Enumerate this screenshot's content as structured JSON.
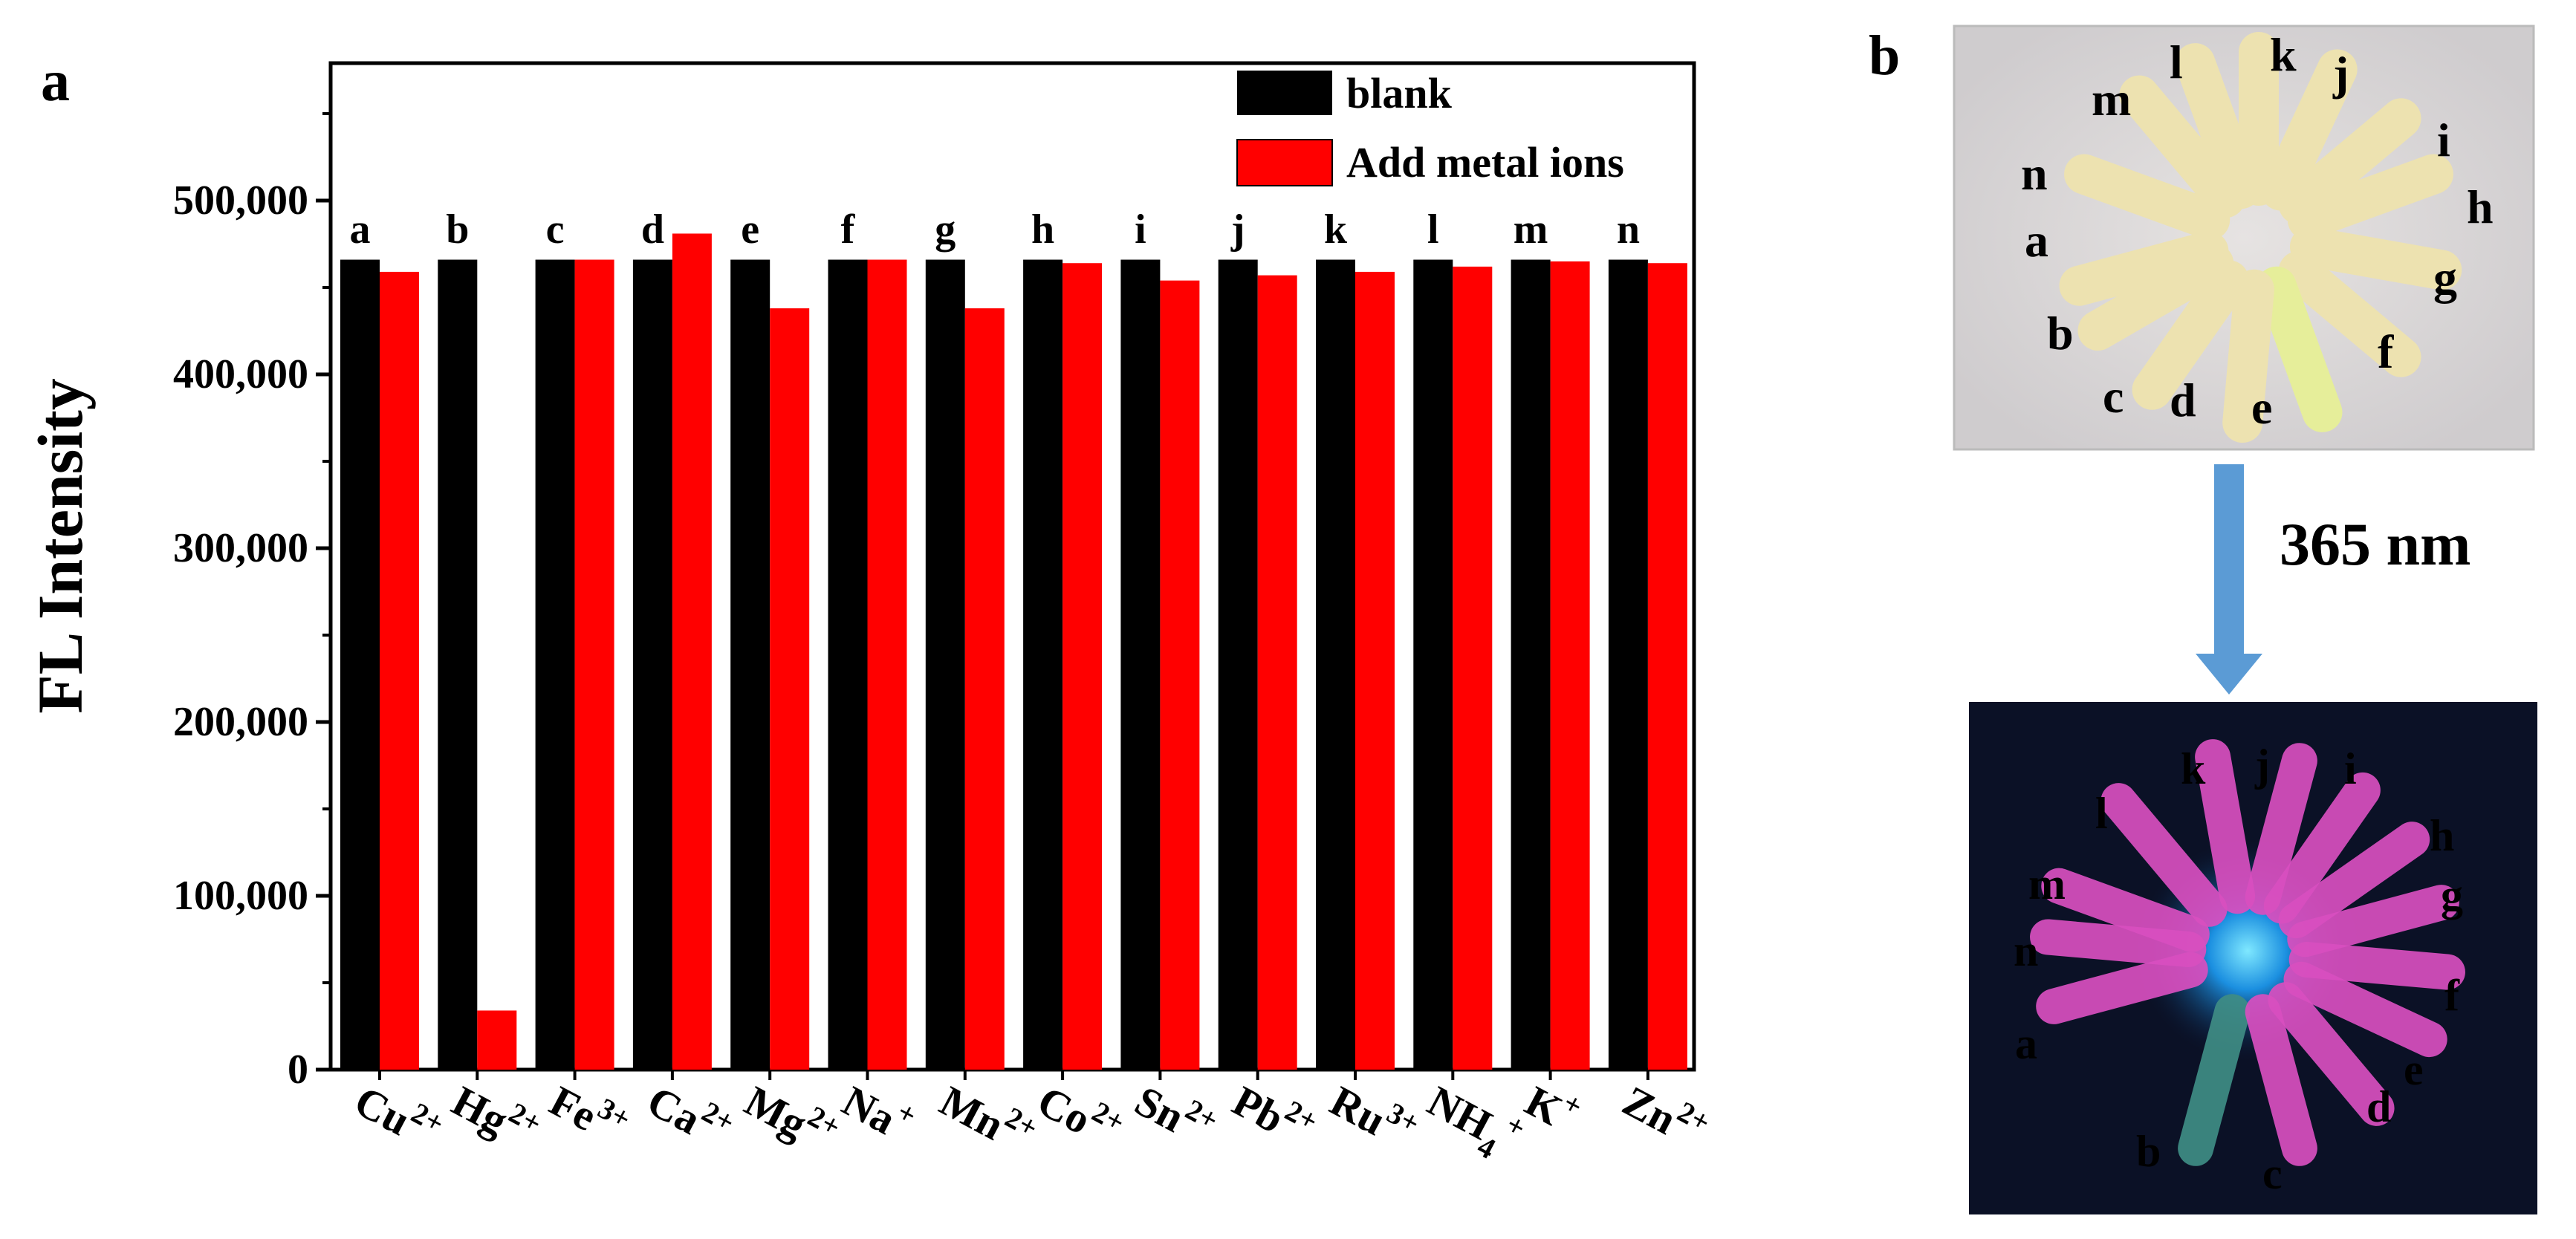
{
  "panel_a_label": "a",
  "panel_b_label": "b",
  "arrow_label": "365 nm",
  "chart_data": {
    "type": "bar",
    "title": "",
    "xlabel": "",
    "ylabel": "FL Intensity",
    "ylim": [
      0,
      560000
    ],
    "yticks": [
      0,
      100000,
      200000,
      300000,
      400000,
      500000
    ],
    "ytick_labels": [
      "0",
      "100,000",
      "200,000",
      "300,000",
      "400,000",
      "500,000"
    ],
    "categories": [
      {
        "base": "Cu",
        "sup": "2+"
      },
      {
        "base": "Hg",
        "sup": "2+"
      },
      {
        "base": "Fe",
        "sup": "3+"
      },
      {
        "base": "Ca",
        "sup": "2+"
      },
      {
        "base": "Mg",
        "sup": "2+"
      },
      {
        "base": "Na",
        "sup": "+"
      },
      {
        "base": "Mn",
        "sup": "2+"
      },
      {
        "base": "Co",
        "sup": "2+"
      },
      {
        "base": "Sn",
        "sup": "2+"
      },
      {
        "base": "Pb",
        "sup": "2+"
      },
      {
        "base": "Ru",
        "sup": "3+"
      },
      {
        "base": "NH",
        "sub": "4",
        "sup": "+"
      },
      {
        "base": "K",
        "sup": "+"
      },
      {
        "base": "Zn",
        "sup": "2+"
      }
    ],
    "bar_letters": [
      "a",
      "b",
      "c",
      "d",
      "e",
      "f",
      "g",
      "h",
      "i",
      "j",
      "k",
      "l",
      "m",
      "n"
    ],
    "series": [
      {
        "name": "blank",
        "color": "#000000",
        "values": [
          466000,
          466000,
          466000,
          466000,
          466000,
          466000,
          466000,
          466000,
          466000,
          466000,
          466000,
          466000,
          466000,
          466000
        ]
      },
      {
        "name": "Add metal ions",
        "color": "#ff0000",
        "values": [
          459000,
          34000,
          466000,
          481000,
          438000,
          466000,
          438000,
          464000,
          454000,
          457000,
          459000,
          462000,
          465000,
          464000
        ]
      }
    ],
    "legend_position": "top-right",
    "grid": false
  },
  "photo_top": {
    "tube_labels": [
      "a",
      "b",
      "c",
      "d",
      "e",
      "f",
      "g",
      "h",
      "i",
      "j",
      "k",
      "l",
      "m",
      "n"
    ]
  },
  "photo_bottom": {
    "tube_labels": [
      "a",
      "b",
      "c",
      "d",
      "e",
      "f",
      "g",
      "h",
      "i",
      "j",
      "k",
      "l",
      "m",
      "n"
    ]
  }
}
